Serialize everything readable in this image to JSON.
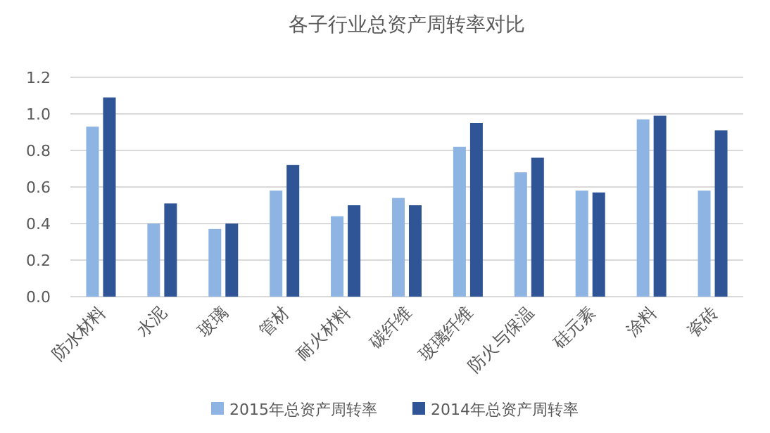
{
  "chart_data": {
    "type": "bar",
    "title": "各子行业总资产周转率对比",
    "categories": [
      "防水材料",
      "水泥",
      "玻璃",
      "管材",
      "耐火材料",
      "碳纤维",
      "玻璃纤维",
      "防火与保温",
      "硅元素",
      "涂料",
      "瓷砖"
    ],
    "series": [
      {
        "name": "2015年总资产周转率",
        "color": "#8eb4e3",
        "values": [
          0.93,
          0.4,
          0.37,
          0.58,
          0.44,
          0.54,
          0.82,
          0.68,
          0.58,
          0.97,
          0.58
        ]
      },
      {
        "name": "2014年总资产周转率",
        "color": "#2f5597",
        "values": [
          1.09,
          0.51,
          0.4,
          0.72,
          0.5,
          0.5,
          0.95,
          0.76,
          0.57,
          0.99,
          0.91
        ]
      }
    ],
    "ylim": [
      0,
      1.2
    ],
    "yticks": [
      {
        "value": 0,
        "label": "0.0"
      },
      {
        "value": 0.2,
        "label": "0.2"
      },
      {
        "value": 0.4,
        "label": "0.4"
      },
      {
        "value": 0.6,
        "label": "0.6"
      },
      {
        "value": 0.8,
        "label": "0.8"
      },
      {
        "value": 1,
        "label": "1.0"
      },
      {
        "value": 1.2,
        "label": "1.2"
      }
    ],
    "grid": "y",
    "legend": "bottom"
  }
}
